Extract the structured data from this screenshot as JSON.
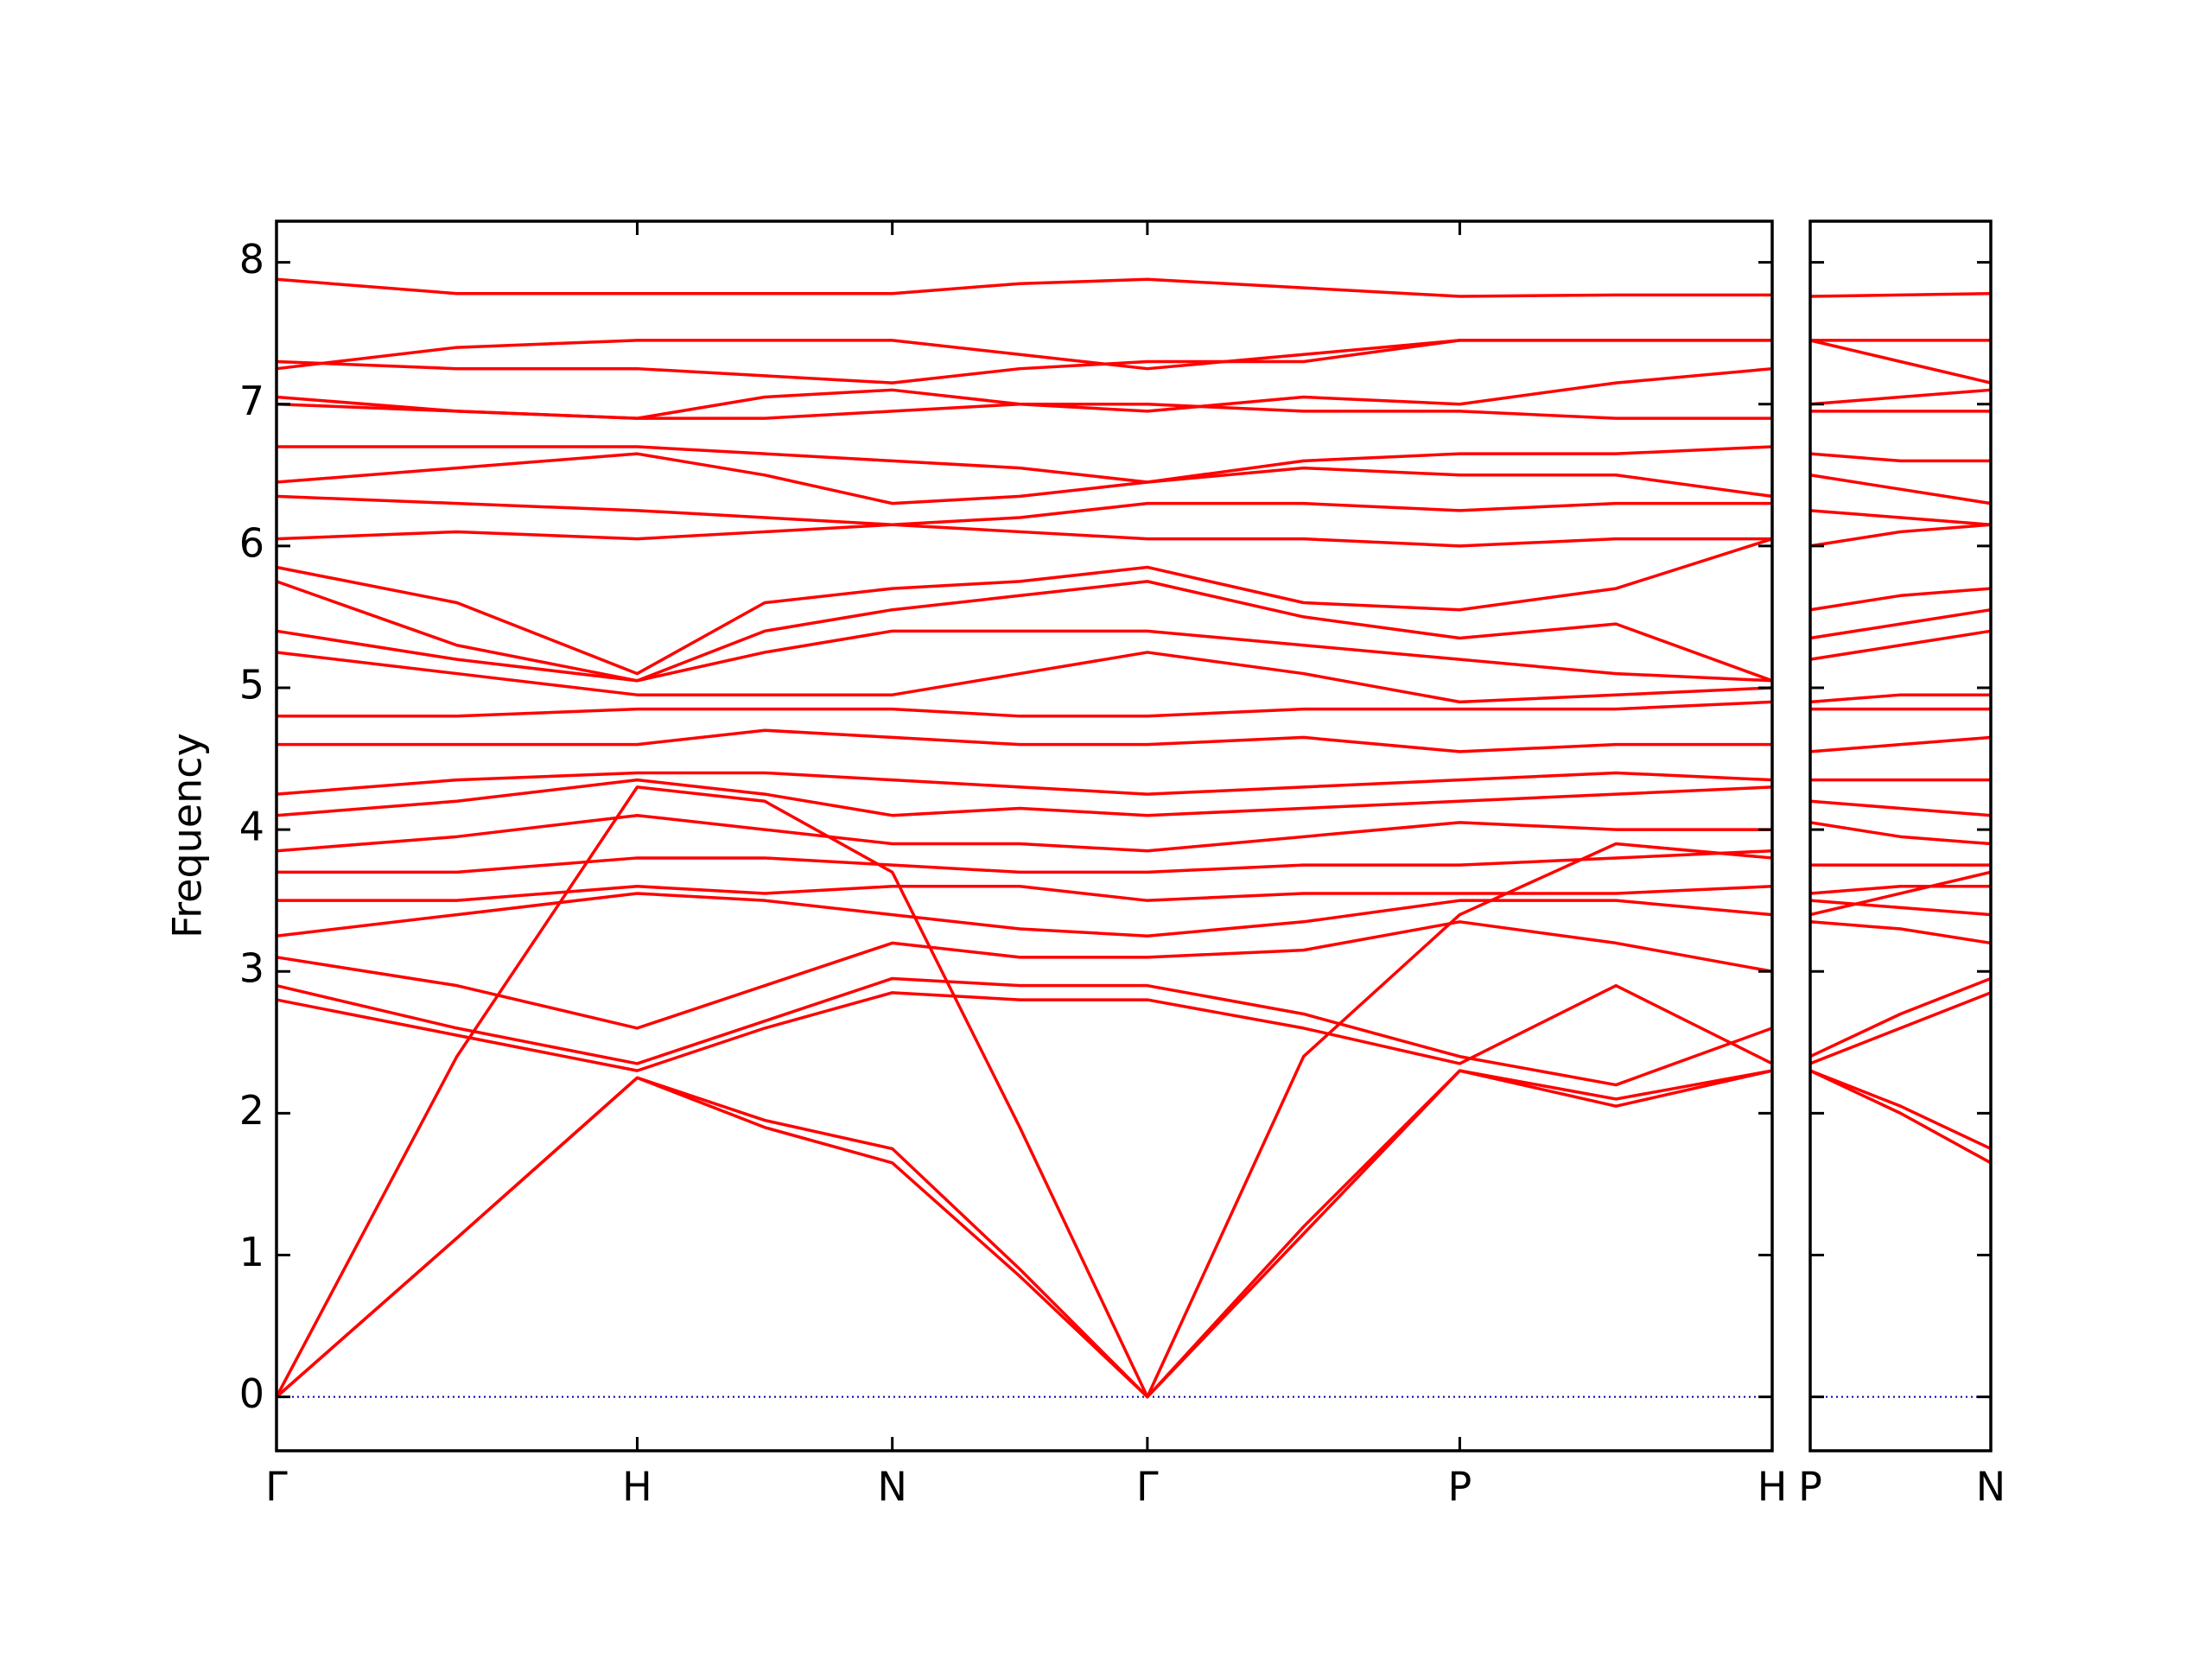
{
  "chart_data": [
    {
      "type": "line",
      "y_label": "Frequency",
      "color": "#ff0000",
      "x": [
        0,
        0.5,
        1,
        1.3536,
        1.7071,
        2.0607,
        2.4142,
        2.8472,
        3.2802,
        3.7133,
        4.1463
      ],
      "xlim": [
        0,
        4.1463
      ],
      "xticks": [
        {
          "value": 0,
          "label": "Γ"
        },
        {
          "value": 1,
          "label": "H"
        },
        {
          "value": 1.7071,
          "label": "N"
        },
        {
          "value": 2.4142,
          "label": "Γ"
        },
        {
          "value": 3.2802,
          "label": "P"
        },
        {
          "value": 4.1463,
          "label": "H"
        }
      ],
      "ylim": [
        -0.38,
        8.29
      ],
      "yticks": [
        0,
        1,
        2,
        3,
        4,
        5,
        6,
        7,
        8
      ],
      "series": [
        {
          "values": [
            0,
            1.12,
            2.25,
            1.9,
            1.65,
            0.85,
            0,
            1.15,
            2.3,
            2.1,
            2.3
          ]
        },
        {
          "values": [
            0,
            1.12,
            2.25,
            1.95,
            1.75,
            0.9,
            0,
            1.2,
            2.3,
            2.05,
            2.3
          ]
        },
        {
          "values": [
            0,
            2.4,
            4.3,
            4.2,
            3.7,
            1.9,
            0,
            2.4,
            3.4,
            3.9,
            3.8
          ]
        },
        {
          "values": [
            2.8,
            2.55,
            2.3,
            2.6,
            2.85,
            2.8,
            2.8,
            2.6,
            2.35,
            2.9,
            2.35
          ]
        },
        {
          "values": [
            2.9,
            2.6,
            2.35,
            2.65,
            2.95,
            2.9,
            2.9,
            2.7,
            2.4,
            2.2,
            2.6
          ]
        },
        {
          "values": [
            3.1,
            2.9,
            2.6,
            2.9,
            3.2,
            3.1,
            3.1,
            3.15,
            3.35,
            3.2,
            3.0
          ]
        },
        {
          "values": [
            3.25,
            3.4,
            3.55,
            3.5,
            3.4,
            3.3,
            3.25,
            3.35,
            3.5,
            3.5,
            3.4
          ]
        },
        {
          "values": [
            3.5,
            3.5,
            3.6,
            3.55,
            3.6,
            3.6,
            3.5,
            3.55,
            3.55,
            3.55,
            3.6
          ]
        },
        {
          "values": [
            3.7,
            3.7,
            3.8,
            3.8,
            3.75,
            3.7,
            3.7,
            3.75,
            3.75,
            3.8,
            3.85
          ]
        },
        {
          "values": [
            3.85,
            3.95,
            4.1,
            4.0,
            3.9,
            3.9,
            3.85,
            3.95,
            4.05,
            4.0,
            4.0
          ]
        },
        {
          "values": [
            4.1,
            4.2,
            4.35,
            4.25,
            4.1,
            4.15,
            4.1,
            4.15,
            4.2,
            4.25,
            4.3
          ]
        },
        {
          "values": [
            4.25,
            4.35,
            4.4,
            4.4,
            4.35,
            4.3,
            4.25,
            4.3,
            4.35,
            4.4,
            4.35
          ]
        },
        {
          "values": [
            4.6,
            4.6,
            4.6,
            4.7,
            4.65,
            4.6,
            4.6,
            4.65,
            4.55,
            4.6,
            4.6
          ]
        },
        {
          "values": [
            4.8,
            4.8,
            4.85,
            4.85,
            4.85,
            4.8,
            4.8,
            4.85,
            4.85,
            4.85,
            4.9
          ]
        },
        {
          "values": [
            5.25,
            5.1,
            4.95,
            4.95,
            4.95,
            5.1,
            5.25,
            5.1,
            4.9,
            4.95,
            5.0
          ]
        },
        {
          "values": [
            5.4,
            5.2,
            5.05,
            5.25,
            5.4,
            5.4,
            5.4,
            5.3,
            5.2,
            5.1,
            5.05
          ]
        },
        {
          "values": [
            5.75,
            5.3,
            5.05,
            5.4,
            5.55,
            5.65,
            5.75,
            5.5,
            5.35,
            5.45,
            5.05
          ]
        },
        {
          "values": [
            5.85,
            5.6,
            5.1,
            5.6,
            5.7,
            5.75,
            5.85,
            5.6,
            5.55,
            5.7,
            6.05
          ]
        },
        {
          "values": [
            6.05,
            6.1,
            6.05,
            6.1,
            6.15,
            6.1,
            6.05,
            6.05,
            6.0,
            6.05,
            6.05
          ]
        },
        {
          "values": [
            6.35,
            6.3,
            6.25,
            6.2,
            6.15,
            6.2,
            6.3,
            6.3,
            6.25,
            6.3,
            6.3
          ]
        },
        {
          "values": [
            6.45,
            6.55,
            6.65,
            6.5,
            6.3,
            6.35,
            6.45,
            6.55,
            6.5,
            6.5,
            6.35
          ]
        },
        {
          "values": [
            6.7,
            6.7,
            6.7,
            6.65,
            6.6,
            6.55,
            6.45,
            6.6,
            6.65,
            6.65,
            6.7
          ]
        },
        {
          "values": [
            7.0,
            6.95,
            6.9,
            6.9,
            6.95,
            7.0,
            7.0,
            6.95,
            6.95,
            6.9,
            6.9
          ]
        },
        {
          "values": [
            7.05,
            6.95,
            6.9,
            7.05,
            7.1,
            7.0,
            6.95,
            7.05,
            7.0,
            7.15,
            7.25
          ]
        },
        {
          "values": [
            7.25,
            7.4,
            7.45,
            7.45,
            7.45,
            7.35,
            7.25,
            7.35,
            7.45,
            7.45,
            7.45
          ]
        },
        {
          "values": [
            7.3,
            7.25,
            7.25,
            7.2,
            7.15,
            7.25,
            7.3,
            7.3,
            7.45,
            7.45,
            7.45
          ]
        },
        {
          "values": [
            7.88,
            7.78,
            7.78,
            7.78,
            7.78,
            7.85,
            7.88,
            7.82,
            7.76,
            7.77,
            7.77
          ]
        }
      ]
    },
    {
      "type": "line",
      "color": "#ff0000",
      "x": [
        4.1463,
        4.3963,
        4.6463
      ],
      "xlim": [
        4.1463,
        4.6463
      ],
      "xticks": [
        {
          "value": 4.1463,
          "label": "P"
        },
        {
          "value": 4.6463,
          "label": "N"
        }
      ],
      "ylim": [
        -0.38,
        8.29
      ],
      "yticks": [
        0,
        1,
        2,
        3,
        4,
        5,
        6,
        7,
        8
      ],
      "series": [
        {
          "values": [
            2.3,
            2.0,
            1.65
          ]
        },
        {
          "values": [
            2.3,
            2.05,
            1.75
          ]
        },
        {
          "values": [
            3.4,
            3.55,
            3.7
          ]
        },
        {
          "values": [
            2.35,
            2.6,
            2.85
          ]
        },
        {
          "values": [
            2.4,
            2.7,
            2.95
          ]
        },
        {
          "values": [
            3.35,
            3.3,
            3.2
          ]
        },
        {
          "values": [
            3.5,
            3.45,
            3.4
          ]
        },
        {
          "values": [
            3.55,
            3.6,
            3.6
          ]
        },
        {
          "values": [
            3.75,
            3.75,
            3.75
          ]
        },
        {
          "values": [
            4.05,
            3.95,
            3.9
          ]
        },
        {
          "values": [
            4.2,
            4.15,
            4.1
          ]
        },
        {
          "values": [
            4.35,
            4.35,
            4.35
          ]
        },
        {
          "values": [
            4.55,
            4.6,
            4.65
          ]
        },
        {
          "values": [
            4.85,
            4.85,
            4.85
          ]
        },
        {
          "values": [
            4.9,
            4.95,
            4.95
          ]
        },
        {
          "values": [
            5.2,
            5.3,
            5.4
          ]
        },
        {
          "values": [
            5.35,
            5.45,
            5.55
          ]
        },
        {
          "values": [
            5.55,
            5.65,
            5.7
          ]
        },
        {
          "values": [
            6.0,
            6.1,
            6.15
          ]
        },
        {
          "values": [
            6.25,
            6.2,
            6.15
          ]
        },
        {
          "values": [
            6.5,
            6.4,
            6.3
          ]
        },
        {
          "values": [
            6.65,
            6.6,
            6.6
          ]
        },
        {
          "values": [
            6.95,
            6.95,
            6.95
          ]
        },
        {
          "values": [
            7.0,
            7.05,
            7.1
          ]
        },
        {
          "values": [
            7.45,
            7.45,
            7.45
          ]
        },
        {
          "values": [
            7.45,
            7.3,
            7.15
          ]
        },
        {
          "values": [
            7.76,
            7.77,
            7.78
          ]
        }
      ]
    }
  ]
}
